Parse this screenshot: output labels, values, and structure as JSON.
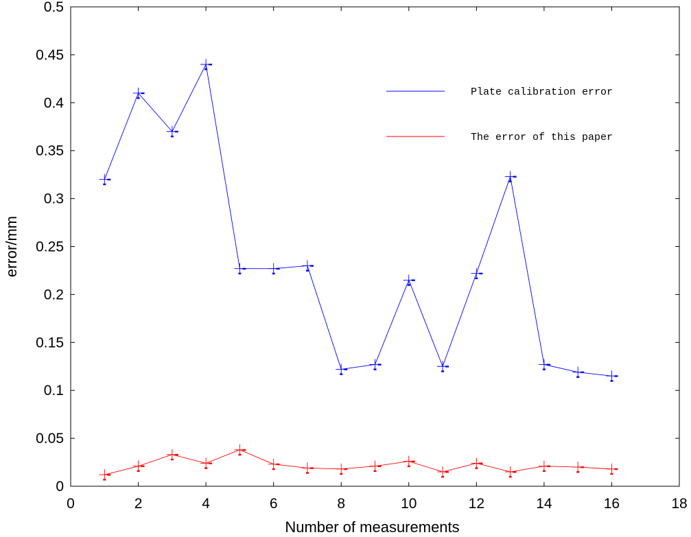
{
  "chart_data": {
    "type": "line",
    "xlabel": "Number of measurements",
    "ylabel": "error/mm",
    "xlim": [
      0,
      18
    ],
    "ylim": [
      0,
      0.5
    ],
    "x_ticks": [
      0,
      2,
      4,
      6,
      8,
      10,
      12,
      14,
      16,
      18
    ],
    "y_ticks": [
      0,
      0.05,
      0.1,
      0.15,
      0.2,
      0.25,
      0.3,
      0.35,
      0.4,
      0.45,
      0.5
    ],
    "x_tick_labels": [
      "0",
      "2",
      "4",
      "6",
      "8",
      "10",
      "12",
      "14",
      "16",
      "18"
    ],
    "y_tick_labels": [
      "0",
      "0.05",
      "0.1",
      "0.15",
      "0.2",
      "0.25",
      "0.3",
      "0.35",
      "0.4",
      "0.45",
      "0.5"
    ],
    "grid": false,
    "legend_position": "top-right",
    "marker": "+",
    "x": [
      1,
      2,
      3,
      4,
      5,
      6,
      7,
      8,
      9,
      10,
      11,
      12,
      13,
      14,
      15,
      16
    ],
    "series": [
      {
        "name": "Plate calibration error",
        "color": "#0000ff",
        "values": [
          0.32,
          0.41,
          0.37,
          0.44,
          0.227,
          0.227,
          0.23,
          0.122,
          0.127,
          0.215,
          0.125,
          0.222,
          0.323,
          0.127,
          0.119,
          0.115
        ]
      },
      {
        "name": "The error of this paper",
        "color": "#ff0000",
        "values": [
          0.012,
          0.021,
          0.033,
          0.024,
          0.038,
          0.023,
          0.019,
          0.018,
          0.021,
          0.026,
          0.015,
          0.024,
          0.015,
          0.021,
          0.02,
          0.018
        ]
      }
    ]
  }
}
